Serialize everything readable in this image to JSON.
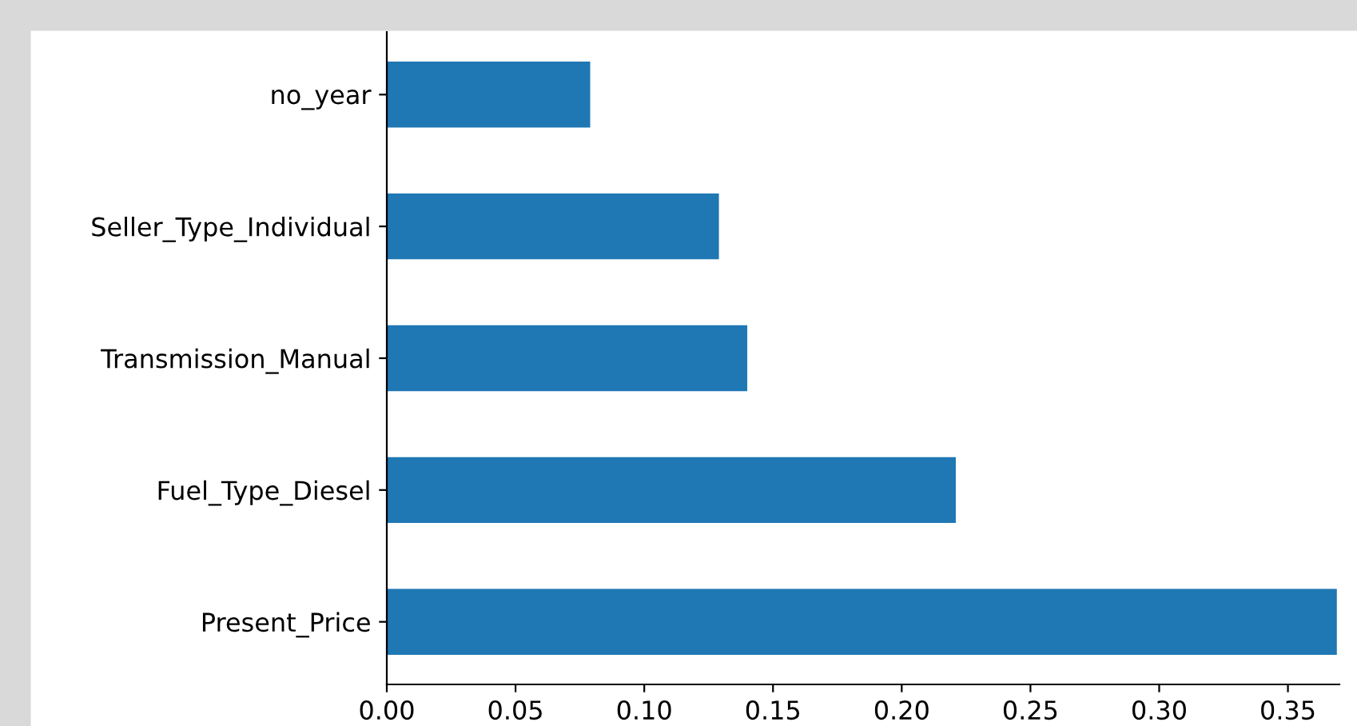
{
  "chart_data": {
    "type": "bar",
    "orientation": "horizontal",
    "categories": [
      "no_year",
      "Seller_Type_Individual",
      "Transmission_Manual",
      "Fuel_Type_Diesel",
      "Present_Price"
    ],
    "values": [
      0.079,
      0.129,
      0.14,
      0.221,
      0.369
    ],
    "color": "#1f77b4",
    "xlim": [
      0,
      0.37
    ],
    "xticks": [
      {
        "value": 0,
        "label": "0.00"
      },
      {
        "value": 0.05,
        "label": "0.05"
      },
      {
        "value": 0.1,
        "label": "0.10"
      },
      {
        "value": 0.15,
        "label": "0.15"
      },
      {
        "value": 0.2,
        "label": "0.20"
      },
      {
        "value": 0.25,
        "label": "0.25"
      },
      {
        "value": 0.3,
        "label": "0.30"
      },
      {
        "value": 0.35,
        "label": "0.35"
      }
    ],
    "grid": false,
    "legend": false
  }
}
